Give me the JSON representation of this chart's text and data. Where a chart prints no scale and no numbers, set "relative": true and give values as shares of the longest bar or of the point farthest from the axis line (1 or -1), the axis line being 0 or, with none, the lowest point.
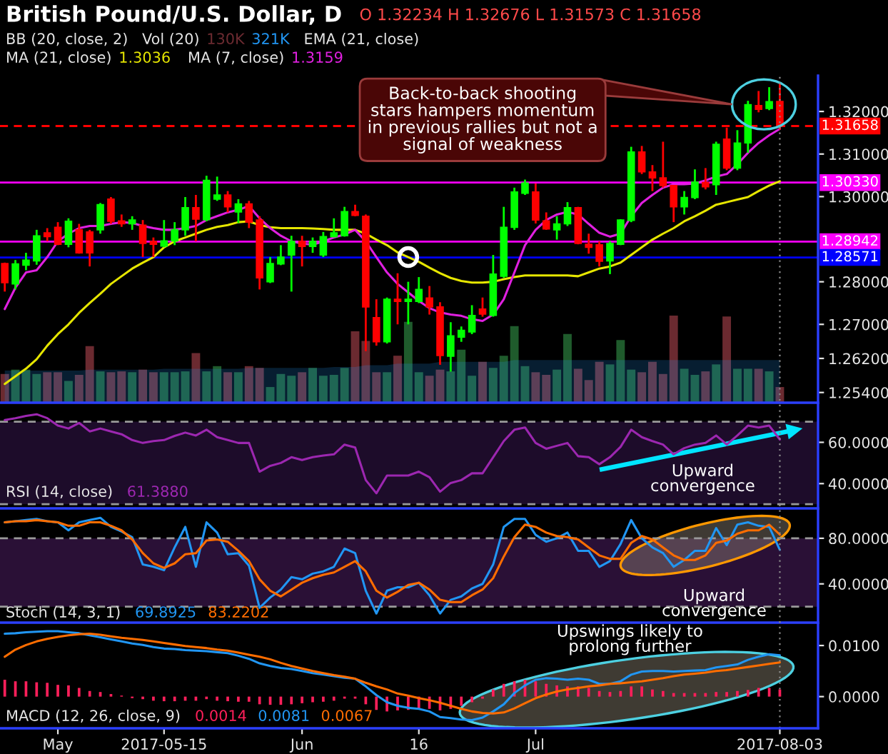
{
  "chart_data": [
    {
      "type": "candlestick",
      "title": "British Pound/U.S. Dollar, D",
      "subtitle": "O 1.32234 H 1.32676 L 1.31573 C 1.31658",
      "categories": [
        null,
        null,
        null,
        null,
        null,
        null,
        null,
        null,
        null,
        null,
        null,
        null,
        null,
        null,
        null,
        null,
        null,
        null,
        null,
        null,
        null,
        null,
        null,
        null,
        null,
        null,
        null,
        null,
        null,
        null,
        null,
        null,
        null,
        null,
        null,
        null,
        null,
        null,
        null,
        null,
        null,
        null,
        null,
        null,
        null,
        null,
        null,
        null,
        null,
        null,
        null,
        null,
        null,
        null,
        null,
        null,
        null,
        null,
        null,
        null,
        null,
        null,
        null,
        null,
        null,
        null,
        null,
        null,
        null,
        null,
        null,
        null,
        null,
        null
      ],
      "ohlc": [
        [
          1.2843,
          1.2845,
          1.2777,
          1.2798
        ],
        [
          1.2795,
          1.2851,
          1.2782,
          1.2842
        ],
        [
          1.2839,
          1.2868,
          1.2827,
          1.2851
        ],
        [
          1.2849,
          1.2922,
          1.284,
          1.2908
        ],
        [
          1.2915,
          1.2926,
          1.2895,
          1.2906
        ],
        [
          1.2928,
          1.294,
          1.2886,
          1.2888
        ],
        [
          1.2888,
          1.2949,
          1.2881,
          1.2942
        ],
        [
          1.2922,
          1.2936,
          1.2866,
          1.2868
        ],
        [
          1.2917,
          1.2922,
          1.2836,
          1.2868
        ],
        [
          1.2922,
          1.2985,
          1.2913,
          1.2981
        ],
        [
          1.2994,
          1.2999,
          1.2936,
          1.2942
        ],
        [
          1.2943,
          1.2958,
          1.2929,
          1.2936
        ],
        [
          1.2936,
          1.2954,
          1.2922,
          1.2945
        ],
        [
          1.2933,
          1.2945,
          1.2858,
          1.289
        ],
        [
          1.2895,
          1.2904,
          1.2858,
          1.2888
        ],
        [
          1.2884,
          1.2945,
          1.2881,
          1.2896
        ],
        [
          1.2896,
          1.294,
          1.2886,
          1.2922
        ],
        [
          1.2922,
          1.2999,
          1.2908,
          1.2974
        ],
        [
          1.2974,
          1.3004,
          1.2895,
          1.2947
        ],
        [
          1.2946,
          1.3049,
          1.2942,
          1.3038
        ],
        [
          1.2994,
          1.3047,
          1.299,
          1.3004
        ],
        [
          1.3004,
          1.3013,
          1.2963,
          1.2976
        ],
        [
          1.2964,
          1.2994,
          1.2938,
          1.2983
        ],
        [
          1.2983,
          1.299,
          1.2926,
          1.294
        ],
        [
          1.2945,
          1.2954,
          1.2782,
          1.2809
        ],
        [
          1.28,
          1.2858,
          1.2797,
          1.2843
        ],
        [
          1.2842,
          1.2886,
          1.2839,
          1.2858
        ],
        [
          1.2863,
          1.2908,
          1.2777,
          1.2895
        ],
        [
          1.2895,
          1.2908,
          1.2836,
          1.2883
        ],
        [
          1.2883,
          1.2904,
          1.2868,
          1.2895
        ],
        [
          1.2863,
          1.2917,
          1.2858,
          1.2906
        ],
        [
          1.2906,
          1.2949,
          1.2904,
          1.2915
        ],
        [
          1.2908,
          1.2976,
          1.2906,
          1.2965
        ],
        [
          1.2965,
          1.2981,
          1.2954,
          1.2956
        ],
        [
          1.2954,
          1.2958,
          1.2637,
          1.2741
        ],
        [
          1.2716,
          1.2759,
          1.265,
          1.2659
        ],
        [
          1.2659,
          1.2763,
          1.2655,
          1.2759
        ],
        [
          1.2759,
          1.282,
          1.27,
          1.2754
        ],
        [
          1.2754,
          1.28,
          1.27,
          1.2759
        ],
        [
          1.2754,
          1.2811,
          1.275,
          1.2782
        ],
        [
          1.2762,
          1.279,
          1.2723,
          1.2741
        ],
        [
          1.2741,
          1.2752,
          1.2605,
          1.2627
        ],
        [
          1.2625,
          1.2705,
          1.2589,
          1.2673
        ],
        [
          1.267,
          1.2695,
          1.2659,
          1.2686
        ],
        [
          1.2682,
          1.2745,
          1.2677,
          1.2721
        ],
        [
          1.2736,
          1.2763,
          1.2718,
          1.2724
        ],
        [
          1.2721,
          1.2863,
          1.2718,
          1.2818
        ],
        [
          1.2813,
          1.2976,
          1.2809,
          1.2928
        ],
        [
          1.2928,
          1.3021,
          1.2922,
          1.3011
        ],
        [
          1.3008,
          1.304,
          1.3004,
          1.3032
        ],
        [
          1.3011,
          1.3031,
          1.2937,
          1.2945
        ],
        [
          1.2943,
          1.2963,
          1.2922,
          1.2924
        ],
        [
          1.2922,
          1.2954,
          1.2899,
          1.2936
        ],
        [
          1.2936,
          1.2987,
          1.2931,
          1.2974
        ],
        [
          1.2974,
          1.2976,
          1.2888,
          1.289
        ],
        [
          1.2888,
          1.2913,
          1.2866,
          1.2881
        ],
        [
          1.2887,
          1.2895,
          1.2836,
          1.2848
        ],
        [
          1.2849,
          1.2895,
          1.2818,
          1.289
        ],
        [
          1.2888,
          1.2947,
          1.2886,
          1.2945
        ],
        [
          1.2944,
          1.3117,
          1.294,
          1.3105
        ],
        [
          1.3105,
          1.3119,
          1.3053,
          1.3058
        ],
        [
          1.3058,
          1.3074,
          1.3013,
          1.3044
        ],
        [
          1.3044,
          1.3129,
          1.3021,
          1.3026
        ],
        [
          1.3026,
          1.3027,
          1.294,
          1.2976
        ],
        [
          1.2976,
          1.3013,
          1.2958,
          1.2998
        ],
        [
          1.2998,
          1.3064,
          1.2994,
          1.3034
        ],
        [
          1.3033,
          1.3067,
          1.3017,
          1.3023
        ],
        [
          1.3028,
          1.3129,
          1.3004,
          1.3123
        ],
        [
          1.3135,
          1.3162,
          1.3062,
          1.3067
        ],
        [
          1.3067,
          1.3156,
          1.3062,
          1.3126
        ],
        [
          1.3126,
          1.3225,
          1.3103,
          1.3216
        ],
        [
          1.3214,
          1.3248,
          1.3198,
          1.3205
        ],
        [
          1.3207,
          1.3257,
          1.3203,
          1.3223
        ],
        [
          1.32234,
          1.32676,
          1.31573,
          1.31658
        ]
      ],
      "colors": [
        "#ff0000",
        "#00ff00",
        "#00ff00",
        "#00ff00",
        "#ff0000",
        "#ff0000",
        "#00ff00",
        "#ff0000",
        "#ff0000",
        "#00ff00",
        "#ff0000",
        "#ff0000",
        "#00ff00",
        "#ff0000",
        "#ff0000",
        "#00ff00",
        "#00ff00",
        "#00ff00",
        "#ff0000",
        "#00ff00",
        "#00ff00",
        "#ff0000",
        "#00ff00",
        "#ff0000",
        "#ff0000",
        "#00ff00",
        "#00ff00",
        "#00ff00",
        "#ff0000",
        "#00ff00",
        "#00ff00",
        "#00ff00",
        "#00ff00",
        "#ff0000",
        "#ff0000",
        "#ff0000",
        "#00ff00",
        "#ff0000",
        "#00ff00",
        "#00ff00",
        "#ff0000",
        "#ff0000",
        "#00ff00",
        "#00ff00",
        "#00ff00",
        "#ff0000",
        "#00ff00",
        "#00ff00",
        "#00ff00",
        "#00ff00",
        "#ff0000",
        "#ff0000",
        "#00ff00",
        "#00ff00",
        "#ff0000",
        "#ff0000",
        "#ff0000",
        "#00ff00",
        "#00ff00",
        "#00ff00",
        "#ff0000",
        "#ff0000",
        "#ff0000",
        "#ff0000",
        "#00ff00",
        "#00ff00",
        "#ff0000",
        "#00ff00",
        "#ff0000",
        "#00ff00",
        "#00ff00",
        "#ff0000",
        "#00ff00",
        "#ff0000"
      ],
      "series": [
        {
          "type": "line",
          "color": "#e6e600",
          "values": [
            1.256,
            1.2578,
            1.2596,
            1.2618,
            1.265,
            1.2677,
            1.27,
            1.2727,
            1.275,
            1.2772,
            1.2795,
            1.2813,
            1.2831,
            1.2845,
            1.2858,
            1.2881,
            1.2895,
            1.2904,
            1.2913,
            1.2922,
            1.2929,
            1.2933,
            1.294,
            1.2942,
            1.2933,
            1.2928,
            1.2926,
            1.2926,
            1.2926,
            1.2925,
            1.2924,
            1.2922,
            1.2922,
            1.2922,
            1.2913,
            1.2899,
            1.2886,
            1.2869,
            1.2858,
            1.2847,
            1.2833,
            1.282,
            1.2809,
            1.2802,
            1.2798,
            1.2798,
            1.28,
            1.2806,
            1.2811,
            1.2815,
            1.2815,
            1.2815,
            1.2815,
            1.2815,
            1.2813,
            1.2822,
            1.2831,
            1.2836,
            1.2845,
            1.2863,
            1.2881,
            1.2899,
            1.2913,
            1.2926,
            1.2942,
            1.2954,
            1.2967,
            1.2981,
            1.2987,
            1.2993,
            1.2999,
            1.3013,
            1.3026,
            1.3036
          ]
        },
        {
          "type": "line",
          "color": "#e020e0",
          "values": [
            1.2736,
            1.2786,
            1.2822,
            1.2827,
            1.2858,
            1.2895,
            1.2913,
            1.2926,
            1.2931,
            1.2931,
            1.2936,
            1.294,
            1.2938,
            1.2931,
            1.2926,
            1.2922,
            1.2922,
            1.2926,
            1.2931,
            1.2945,
            1.2954,
            1.2963,
            1.2969,
            1.2978,
            1.2949,
            1.2926,
            1.2908,
            1.2895,
            1.289,
            1.2887,
            1.2895,
            1.2904,
            1.2911,
            1.2922,
            1.2895,
            1.2858,
            1.2822,
            1.2795,
            1.2775,
            1.2755,
            1.2738,
            1.2728,
            1.2723,
            1.272,
            1.2712,
            1.2708,
            1.2723,
            1.2759,
            1.2822,
            1.2886,
            1.2922,
            1.2945,
            1.2958,
            1.2964,
            1.2958,
            1.2936,
            1.2915,
            1.2906,
            1.2913,
            1.2954,
            1.2985,
            1.3004,
            1.3021,
            1.3029,
            1.3029,
            1.3031,
            1.3038,
            1.3047,
            1.3053,
            1.3076,
            1.3103,
            1.3126,
            1.3144,
            1.3159
          ]
        }
      ],
      "ylim": [
        1.2516,
        1.3284
      ],
      "yticks": [
        {
          "value": 1.254,
          "label": "1.25400"
        },
        {
          "value": 1.262,
          "label": "1.26200"
        },
        {
          "value": 1.27,
          "label": "1.27000"
        },
        {
          "value": 1.28,
          "label": "1.28000"
        },
        {
          "value": 1.3,
          "label": "1.30000"
        },
        {
          "value": 1.31,
          "label": "1.31000"
        },
        {
          "value": 1.32,
          "label": "1.32000"
        }
      ],
      "ref_lines": [
        {
          "axis": "y",
          "value": 1.31658,
          "label": "1.31658",
          "color": "#ff0000",
          "line_style": "dashed"
        },
        {
          "axis": "y",
          "value": 1.3033,
          "label": "1.30330",
          "color": "#ff00ff"
        },
        {
          "axis": "y",
          "value": 1.28942,
          "label": "1.28942",
          "color": "#ff00ff"
        },
        {
          "axis": "y",
          "value": 1.28571,
          "label": "1.28571",
          "color": "#0000ff"
        }
      ],
      "annotations": [
        "BB (20, close, 2)",
        "EMA (21, close)",
        "MA (21, close)",
        "1.3036",
        "MA (7, close)",
        "1.3159",
        "Back-to-back shooting\nstars hampers momentum\nin previous rallies but not a\nsignal of weakness"
      ],
      "tick_labels": "y"
    },
    {
      "type": "bar",
      "title": "Vol (20)",
      "relative": true,
      "categories": [
        null,
        null,
        null,
        null,
        null,
        null,
        null,
        null,
        null,
        null,
        null,
        null,
        null,
        null,
        null,
        null,
        null,
        null,
        null,
        null,
        null,
        null,
        null,
        null,
        null,
        null,
        null,
        null,
        null,
        null,
        null,
        null,
        null,
        null,
        null,
        null,
        null,
        null,
        null,
        null,
        null,
        null,
        null,
        null,
        null,
        null,
        null,
        null,
        null,
        null,
        null,
        null,
        null,
        null,
        null,
        null,
        null,
        null,
        null,
        null,
        null,
        null,
        null,
        null,
        null,
        null,
        null,
        null,
        null,
        null,
        null,
        null,
        null,
        null
      ],
      "series": [
        {
          "type": "bar",
          "name": "130K",
          "color": "#6b2a30",
          "colors": [
            "#6b2a30",
            "#1f5b2c",
            "#1f5b2c",
            "#1f5b2c",
            "#6b2a30",
            "#6b2a30",
            "#1f5b2c",
            "#6b2a30",
            "#6b2a30",
            "#1f5b2c",
            "#6b2a30",
            "#6b2a30",
            "#1f5b2c",
            "#6b2a30",
            "#6b2a30",
            "#1f5b2c",
            "#1f5b2c",
            "#1f5b2c",
            "#6b2a30",
            "#1f5b2c",
            "#1f5b2c",
            "#6b2a30",
            "#1f5b2c",
            "#6b2a30",
            "#6b2a30",
            "#1f5b2c",
            "#1f5b2c",
            "#1f5b2c",
            "#6b2a30",
            "#1f5b2c",
            "#1f5b2c",
            "#1f5b2c",
            "#1f5b2c",
            "#6b2a30",
            "#6b2a30",
            "#6b2a30",
            "#1f5b2c",
            "#6b2a30",
            "#1f5b2c",
            "#1f5b2c",
            "#6b2a30",
            "#6b2a30",
            "#1f5b2c",
            "#1f5b2c",
            "#1f5b2c",
            "#6b2a30",
            "#1f5b2c",
            "#1f5b2c",
            "#1f5b2c",
            "#1f5b2c",
            "#6b2a30",
            "#6b2a30",
            "#1f5b2c",
            "#1f5b2c",
            "#6b2a30",
            "#6b2a30",
            "#6b2a30",
            "#1f5b2c",
            "#1f5b2c",
            "#1f5b2c",
            "#6b2a30",
            "#6b2a30",
            "#6b2a30",
            "#6b2a30",
            "#1f5b2c",
            "#1f5b2c",
            "#6b2a30",
            "#1f5b2c",
            "#6b2a30",
            "#1f5b2c",
            "#1f5b2c",
            "#6b2a30",
            "#1f5b2c",
            "#6b2a30"
          ],
          "values": [
            0.33,
            0.38,
            0.38,
            0.33,
            0.35,
            0.35,
            0.25,
            0.32,
            0.65,
            0.36,
            0.35,
            0.36,
            0.35,
            0.38,
            0.35,
            0.35,
            0.35,
            0.36,
            0.57,
            0.36,
            0.42,
            0.35,
            0.35,
            0.42,
            0.4,
            0.18,
            0.33,
            0.31,
            0.35,
            0.4,
            0.31,
            0.32,
            0.4,
            0.82,
            0.71,
            0.35,
            0.35,
            0.54,
            0.93,
            0.35,
            0.31,
            0.38,
            0.36,
            0.61,
            0.31,
            0.47,
            0.4,
            0.54,
            0.88,
            0.42,
            0.35,
            0.32,
            0.38,
            0.79,
            0.39,
            0.26,
            0.47,
            0.44,
            0.72,
            0.38,
            0.35,
            0.47,
            0.33,
            1,
            0.39,
            0.32,
            0.36,
            0.44,
            0.99,
            0.39,
            0.39,
            0.39,
            0.36,
            0.18
          ]
        },
        {
          "type": "area",
          "name": "321K",
          "color": "#2196f3",
          "values": [
            0.37,
            0.37,
            0.37,
            0.37,
            0.37,
            0.37,
            0.37,
            0.37,
            0.38,
            0.38,
            0.38,
            0.38,
            0.38,
            0.38,
            0.38,
            0.39,
            0.39,
            0.39,
            0.39,
            0.39,
            0.39,
            0.39,
            0.39,
            0.4,
            0.4,
            0.4,
            0.4,
            0.4,
            0.4,
            0.4,
            0.4,
            0.41,
            0.41,
            0.41,
            0.43,
            0.43,
            0.43,
            0.45,
            0.45,
            0.45,
            0.45,
            0.47,
            0.47,
            0.47,
            0.47,
            0.47,
            0.47,
            0.47,
            0.49,
            0.49,
            0.49,
            0.49,
            0.49,
            0.49,
            0.49,
            0.49,
            0.49,
            0.49,
            0.49,
            0.49,
            0.49,
            0.49,
            0.49,
            0.49,
            0.49,
            0.49,
            0.49,
            0.49,
            0.49,
            0.49,
            0.49,
            0.49,
            0.49,
            0.49
          ]
        }
      ],
      "tick_labels": false,
      "legend": "top left"
    },
    {
      "type": "line",
      "title": "RSI (14, close)",
      "categories": [
        null,
        null,
        null,
        null,
        null,
        null,
        null,
        null,
        null,
        null,
        null,
        null,
        null,
        null,
        null,
        null,
        null,
        null,
        null,
        null,
        null,
        null,
        null,
        null,
        null,
        null,
        null,
        null,
        null,
        null,
        null,
        null,
        null,
        null,
        null,
        null,
        null,
        null,
        null,
        null,
        null,
        null,
        null,
        null,
        null,
        null,
        null,
        null,
        null,
        null,
        null,
        null,
        null,
        null,
        null,
        null,
        null,
        null,
        null,
        null,
        null,
        null,
        null,
        null,
        null,
        null,
        null,
        null,
        null,
        null,
        null,
        null,
        null,
        null
      ],
      "series": [
        {
          "name": "61.3880",
          "color": "#9c27b0",
          "values": [
            70.8,
            71.7,
            72.8,
            73.6,
            71.7,
            68.1,
            66.7,
            69.4,
            65.3,
            66.7,
            65.3,
            63.9,
            61.1,
            59.7,
            60.6,
            61.1,
            63.1,
            64.7,
            63.3,
            66.1,
            62.5,
            61.1,
            59.7,
            59.7,
            45.8,
            48.6,
            50,
            52.8,
            51.4,
            52.8,
            53.6,
            54.2,
            58.9,
            57.5,
            41.7,
            35.3,
            43.9,
            43.9,
            43.9,
            45.8,
            43.1,
            36.1,
            40.3,
            41.7,
            45,
            45,
            52.8,
            60.6,
            66.1,
            67.2,
            59.7,
            56.9,
            58.3,
            59.7,
            53.3,
            52.8,
            49.4,
            52.8,
            57.8,
            66.1,
            62.5,
            60.6,
            58.9,
            54.2,
            57.2,
            58.9,
            59.7,
            63.3,
            58.9,
            63.3,
            68.1,
            67.2,
            68.1,
            61.388
          ]
        }
      ],
      "ylim": [
        28,
        78.5
      ],
      "yticks": [
        {
          "value": 40,
          "label": "40.0000"
        },
        {
          "value": 60,
          "label": "60.0000"
        }
      ],
      "ref_lines": [
        {
          "axis": "y",
          "value": 70,
          "color": "#9a9a9a",
          "line_style": "dashed"
        },
        {
          "axis": "y",
          "value": 30,
          "color": "#9a9a9a",
          "line_style": "dashed"
        }
      ],
      "bands": [
        {
          "axis": "y",
          "from": 30,
          "to": 70,
          "color": "#1d0c2a"
        }
      ],
      "annotations": [
        "Upward\nconvergence"
      ],
      "tick_labels": "y",
      "legend": "bottom left"
    },
    {
      "type": "line",
      "title": "Stoch (14, 3, 1)",
      "categories": [
        null,
        null,
        null,
        null,
        null,
        null,
        null,
        null,
        null,
        null,
        null,
        null,
        null,
        null,
        null,
        null,
        null,
        null,
        null,
        null,
        null,
        null,
        null,
        null,
        null,
        null,
        null,
        null,
        null,
        null,
        null,
        null,
        null,
        null,
        null,
        null,
        null,
        null,
        null,
        null,
        null,
        null,
        null,
        null,
        null,
        null,
        null,
        null,
        null,
        null,
        null,
        null,
        null,
        null,
        null,
        null,
        null,
        null,
        null,
        null,
        null,
        null,
        null,
        null,
        null,
        null,
        null,
        null,
        null,
        null,
        null,
        null,
        null,
        null
      ],
      "series": [
        {
          "name": "69.8925",
          "color": "#2196f3",
          "values": [
            94,
            95,
            96,
            97,
            95,
            94,
            87,
            94,
            96,
            98,
            90,
            86,
            81,
            57,
            55,
            52,
            72,
            90,
            55,
            94,
            85,
            66,
            67,
            56,
            19,
            28,
            35,
            46,
            44,
            49,
            51,
            55,
            71,
            67,
            34,
            14,
            34,
            37,
            37,
            41,
            30,
            14,
            26,
            29,
            36,
            40,
            57,
            90,
            97,
            97,
            83,
            77,
            80,
            85,
            69,
            69,
            55,
            60,
            75,
            96,
            80,
            72,
            67,
            55,
            61,
            69,
            69,
            89,
            74,
            92,
            94,
            91,
            90,
            69.8925
          ]
        },
        {
          "name": "83.2202",
          "color": "#ff6d00",
          "values": [
            94,
            95,
            95,
            96,
            95,
            94,
            91,
            91,
            94,
            94,
            91,
            87,
            79,
            67,
            58,
            54,
            58,
            66,
            67,
            78,
            79,
            77,
            69,
            60,
            44,
            34,
            29,
            35,
            41,
            45,
            48,
            50,
            55,
            60,
            51,
            34,
            28,
            33,
            39,
            41,
            35,
            26,
            24,
            24,
            30,
            35,
            45,
            64,
            81,
            92,
            90,
            85,
            82,
            81,
            79,
            72,
            65,
            62,
            62,
            76,
            82,
            79,
            72,
            65,
            61,
            61,
            65,
            76,
            78,
            84,
            87,
            87,
            92,
            83.2202
          ]
        }
      ],
      "ylim": [
        6,
        105
      ],
      "yticks": [
        {
          "value": 40,
          "label": "40.0000"
        },
        {
          "value": 80,
          "label": "80.0000"
        }
      ],
      "ref_lines": [
        {
          "axis": "y",
          "value": 80,
          "color": "#9a9a9a",
          "line_style": "dashed"
        },
        {
          "axis": "y",
          "value": 20,
          "color": "#9a9a9a",
          "line_style": "dashed"
        }
      ],
      "bands": [
        {
          "axis": "y",
          "from": 20,
          "to": 80,
          "color": "#2a1036"
        }
      ],
      "annotations": [
        "Upward\nconvergence"
      ],
      "tick_labels": "y",
      "legend": "bottom left"
    },
    {
      "type": "line",
      "title": "MACD (12, 26, close, 9)",
      "categories": [
        null,
        null,
        null,
        null,
        null,
        "May",
        null,
        null,
        null,
        null,
        null,
        null,
        null,
        null,
        null,
        "2017-05-15",
        null,
        null,
        null,
        null,
        null,
        null,
        null,
        null,
        null,
        null,
        null,
        null,
        "Jun",
        null,
        null,
        null,
        null,
        null,
        null,
        null,
        null,
        null,
        null,
        "16",
        null,
        null,
        null,
        null,
        null,
        null,
        null,
        null,
        null,
        null,
        "Jul",
        null,
        null,
        null,
        null,
        null,
        null,
        null,
        null,
        null,
        null,
        null,
        null,
        null,
        null,
        null,
        null,
        null,
        null,
        null,
        null,
        null,
        null,
        "2017-08-03"
      ],
      "series": [
        {
          "type": "bar",
          "name": "0.0014",
          "color": "#ff1f5a",
          "values": [
            0.0033,
            0.003,
            0.003,
            0.0028,
            0.0027,
            0.0023,
            0.0022,
            0.0017,
            0.0011,
            0.0009,
            0.0005,
            0.0002,
            -0.0003,
            -0.0005,
            -0.0008,
            -0.0009,
            -0.0009,
            -0.0008,
            -0.0008,
            -0.0005,
            -0.0008,
            -0.0009,
            -0.001,
            -0.001,
            -0.0015,
            -0.0016,
            -0.0016,
            -0.0015,
            -0.0013,
            -0.0011,
            -0.001,
            -0.0008,
            -0.0004,
            -0.0004,
            -0.0015,
            -0.0026,
            -0.0029,
            -0.0027,
            -0.0026,
            -0.0024,
            -0.0024,
            -0.0027,
            -0.0024,
            -0.0018,
            -0.0011,
            -0.0004,
            0.0014,
            0.0025,
            0.003,
            0.0033,
            0.003,
            0.0025,
            0.0022,
            0.002,
            0.002,
            0.0017,
            0.0011,
            0.0009,
            0.0011,
            0.002,
            0.002,
            0.0014,
            0.0011,
            0.0007,
            0.0007,
            0.0007,
            0.0007,
            0.0009,
            0.0009,
            0.0011,
            0.0013,
            0.0017,
            0.0017,
            0.0014
          ]
        },
        {
          "type": "line",
          "name": "0.0081",
          "color": "#2196f3",
          "values": [
            0.0123,
            0.0124,
            0.0126,
            0.0127,
            0.0128,
            0.0128,
            0.0126,
            0.0124,
            0.012,
            0.0116,
            0.0112,
            0.0108,
            0.0104,
            0.0101,
            0.0097,
            0.0094,
            0.0093,
            0.0091,
            0.009,
            0.0089,
            0.0087,
            0.0085,
            0.008,
            0.0074,
            0.0065,
            0.006,
            0.0056,
            0.0054,
            0.005,
            0.0046,
            0.0043,
            0.004,
            0.0037,
            0.0035,
            0.002,
            0.0003,
            -0.0011,
            -0.0018,
            -0.0022,
            -0.0024,
            -0.0029,
            -0.004,
            -0.0042,
            -0.0045,
            -0.0046,
            -0.0041,
            -0.0029,
            -0.0015,
            0.0007,
            0.0022,
            0.0033,
            0.0036,
            0.0035,
            0.0033,
            0.0035,
            0.0033,
            0.0025,
            0.0025,
            0.003,
            0.0043,
            0.0049,
            0.005,
            0.005,
            0.0049,
            0.005,
            0.0051,
            0.0052,
            0.0057,
            0.006,
            0.0063,
            0.0072,
            0.0078,
            0.0083,
            0.0081
          ]
        },
        {
          "type": "line",
          "name": "0.0067",
          "color": "#ff6d00",
          "values": [
            0.0078,
            0.0092,
            0.0101,
            0.0108,
            0.0113,
            0.0117,
            0.012,
            0.0122,
            0.0123,
            0.0121,
            0.0118,
            0.0115,
            0.0113,
            0.0111,
            0.0108,
            0.0105,
            0.0102,
            0.0099,
            0.0097,
            0.0095,
            0.0092,
            0.009,
            0.0086,
            0.0082,
            0.0078,
            0.0073,
            0.0066,
            0.006,
            0.0055,
            0.005,
            0.0046,
            0.0042,
            0.0039,
            0.0035,
            0.0027,
            0.002,
            0.0014,
            0.0006,
            0.0002,
            -0.0003,
            -0.0007,
            -0.0012,
            -0.0018,
            -0.0024,
            -0.0029,
            -0.0032,
            -0.0033,
            -0.0031,
            -0.0023,
            -0.0013,
            -0.0003,
            0.0004,
            0.001,
            0.0014,
            0.0017,
            0.002,
            0.0022,
            0.0025,
            0.0026,
            0.0028,
            0.003,
            0.0033,
            0.0036,
            0.004,
            0.0043,
            0.0045,
            0.0047,
            0.005,
            0.0052,
            0.0055,
            0.0058,
            0.0061,
            0.0064,
            0.0067
          ]
        }
      ],
      "ylim": [
        -0.0062,
        0.0142
      ],
      "yticks": [
        {
          "value": 0,
          "label": "0.0000"
        },
        {
          "value": 0.01,
          "label": "0.0100"
        }
      ],
      "ref_lines": [
        {
          "axis": "x",
          "value": "2017-08-03",
          "color": "#8a8a8a",
          "line_style": "dotted"
        }
      ],
      "annotations": [
        "Upswings likely to\nprolong further"
      ],
      "legend": "bottom left"
    }
  ]
}
